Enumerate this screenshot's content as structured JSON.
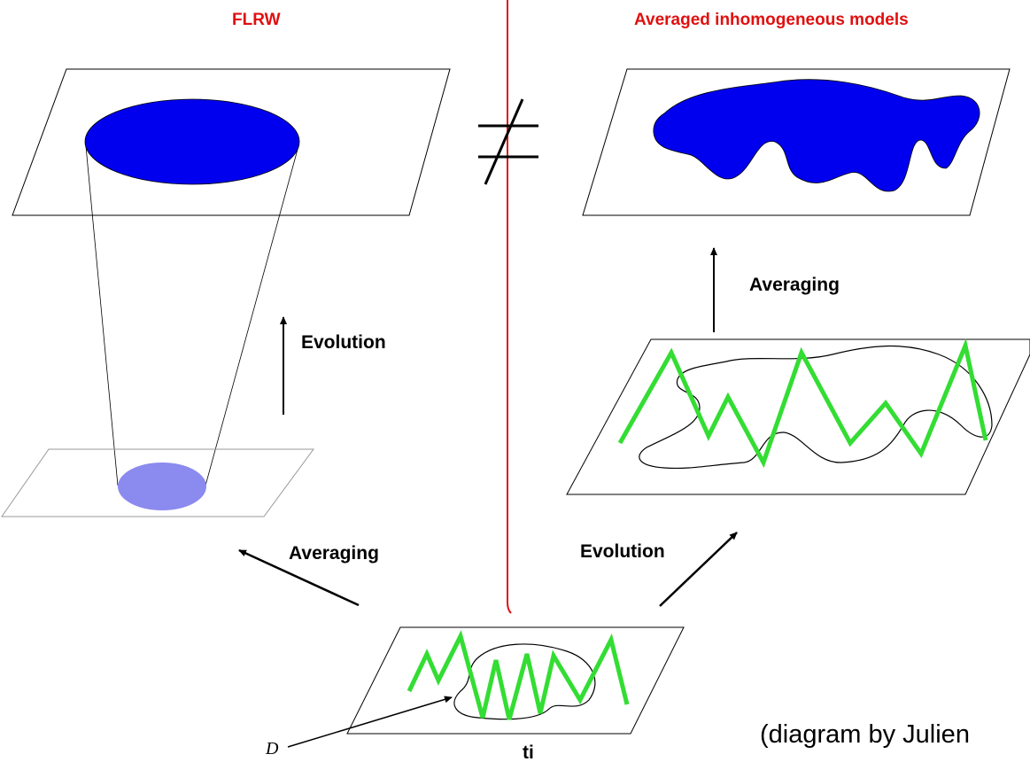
{
  "titles": {
    "left": "FLRW",
    "right": "Averaged inhomogeneous models"
  },
  "labels": {
    "evolution_left": "Evolution",
    "averaging_right": "Averaging",
    "averaging_bottom": "Averaging",
    "evolution_bottom": "Evolution",
    "domain": "D",
    "initial_time": "ti"
  },
  "credit": "(diagram by Julien"
}
